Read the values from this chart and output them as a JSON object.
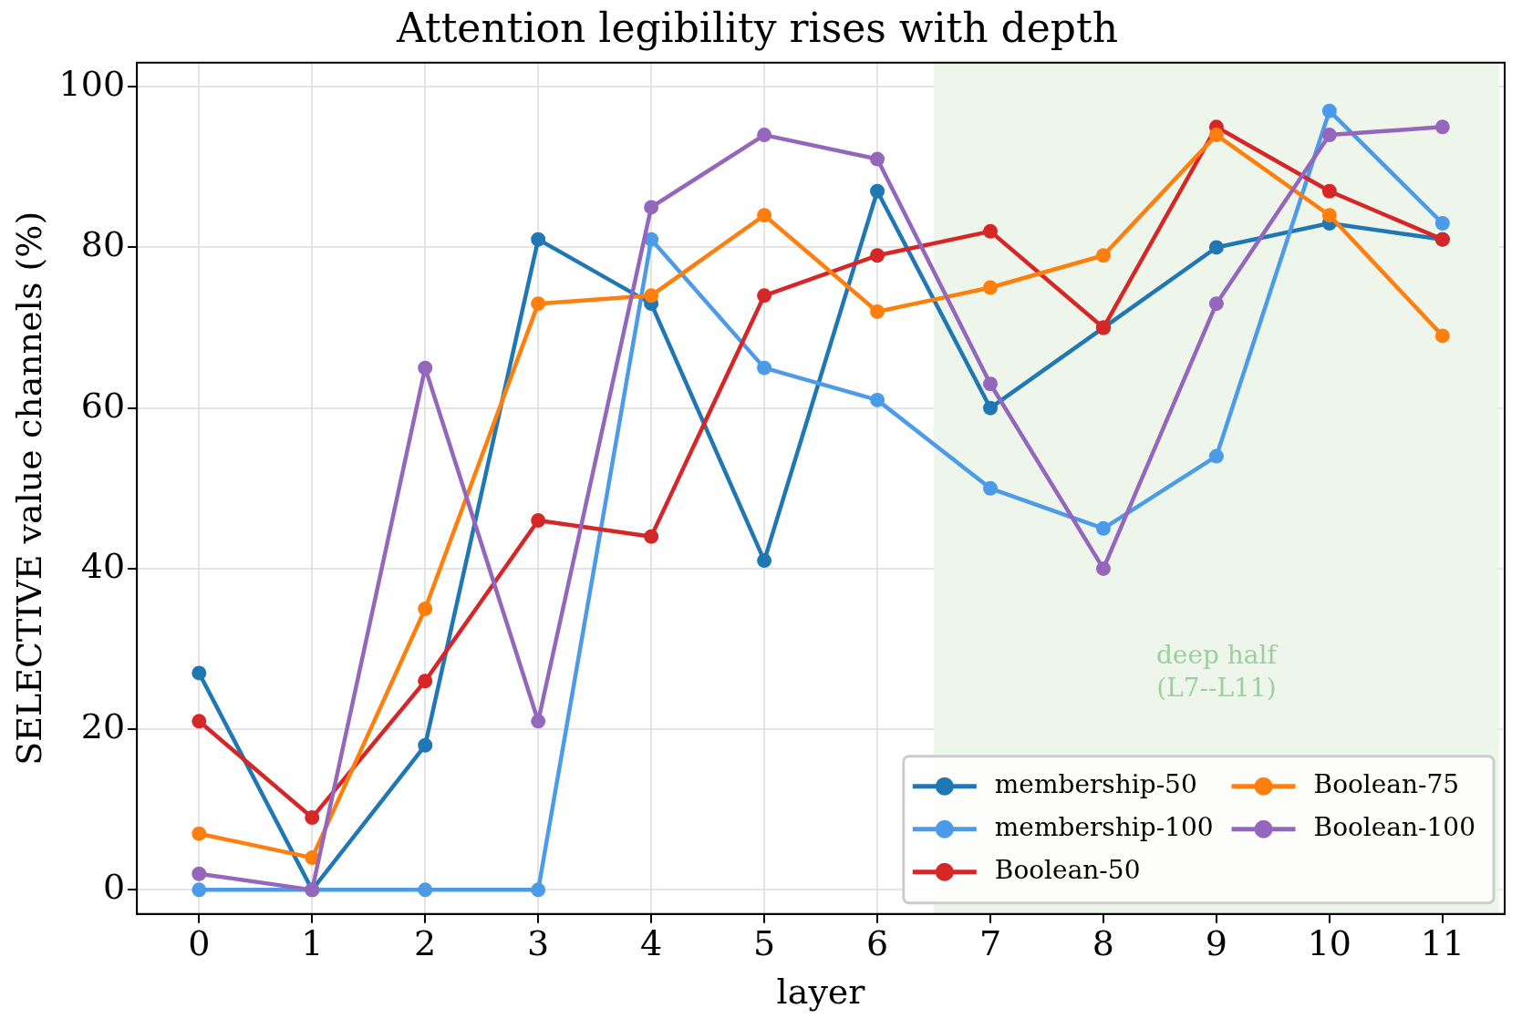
{
  "chart_data": {
    "type": "line",
    "title": "Attention legibility rises with depth",
    "xlabel": "layer",
    "ylabel": "SELECTIVE value channels (%)",
    "x": [
      0,
      1,
      2,
      3,
      4,
      5,
      6,
      7,
      8,
      9,
      10,
      11
    ],
    "series": [
      {
        "name": "membership-50",
        "color": "#1f77b4",
        "values": [
          27,
          0,
          18,
          81,
          73,
          41,
          87,
          60,
          70,
          80,
          83,
          81
        ]
      },
      {
        "name": "membership-100",
        "color": "#4c9be8",
        "values": [
          0,
          0,
          0,
          0,
          81,
          65,
          61,
          50,
          45,
          54,
          97,
          83
        ]
      },
      {
        "name": "Boolean-50",
        "color": "#d62728",
        "values": [
          21,
          9,
          26,
          46,
          44,
          74,
          79,
          82,
          70,
          95,
          87,
          81
        ]
      },
      {
        "name": "Boolean-75",
        "color": "#ff7f0e",
        "values": [
          7,
          4,
          35,
          73,
          74,
          84,
          72,
          75,
          79,
          94,
          84,
          69
        ]
      },
      {
        "name": "Boolean-100",
        "color": "#9467bd",
        "values": [
          2,
          0,
          65,
          21,
          85,
          94,
          91,
          63,
          40,
          73,
          94,
          95
        ]
      }
    ],
    "xlim": [
      -0.55,
      11.55
    ],
    "xticks": [
      0,
      1,
      2,
      3,
      4,
      5,
      6,
      7,
      8,
      9,
      10,
      11
    ],
    "ylim": [
      -3,
      103
    ],
    "yticks": [
      0,
      20,
      40,
      60,
      80,
      100
    ],
    "bands": [
      {
        "axis": "x",
        "from": 6.5,
        "to": 11.5,
        "label": "deep half (L7--L11)",
        "color": "#eef6ec"
      }
    ],
    "grid": true,
    "legend": "bottom right",
    "marker": "circle",
    "line_style": "solid"
  }
}
